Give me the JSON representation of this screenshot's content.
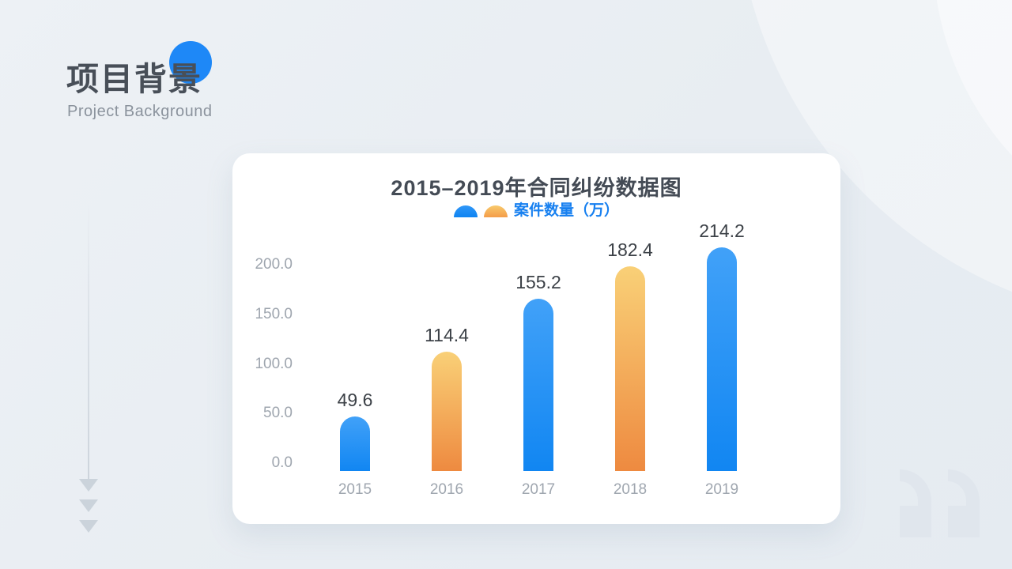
{
  "header": {
    "title": "项目背景",
    "subtitle": "Project Background"
  },
  "chart": {
    "title": "2015–2019年合同纠纷数据图",
    "legend_label": "案件数量（万）"
  },
  "chart_data": {
    "type": "bar",
    "title": "2015–2019年合同纠纷数据图",
    "categories": [
      "2015",
      "2016",
      "2017",
      "2018",
      "2019"
    ],
    "series": [
      {
        "name": "案件数量（万）",
        "values": [
          49.6,
          114.4,
          155.2,
          182.4,
          214.2
        ]
      }
    ],
    "data_labels": [
      "49.6",
      "114.4",
      "155.2",
      "182.4",
      "214.2"
    ],
    "y_tick_labels": [
      "200.0",
      "150.0",
      "100.0",
      "50.0",
      "0.0"
    ],
    "ylim": [
      0,
      200
    ],
    "xlabel": "",
    "ylabel": "",
    "grid": false,
    "legend_position": "top-center",
    "bar_styles": [
      "blue",
      "orange",
      "blue",
      "orange",
      "blue"
    ]
  },
  "colors": {
    "accent_blue": "#1E88F7",
    "background": "#E8EDF2",
    "title_text": "#484F58",
    "subtitle_text": "#8B939D",
    "legend_text": "#1780F0",
    "axis_text": "#9FA6AF",
    "value_text": "#3C4147",
    "bar_blue_top": "#41A1F8",
    "bar_blue_bottom": "#1186F2",
    "bar_orange_top": "#F9D077",
    "bar_orange_bottom": "#EE8A40",
    "decoration_gray": "#CBD3DB",
    "quote_gray": "#E0E6ED"
  }
}
